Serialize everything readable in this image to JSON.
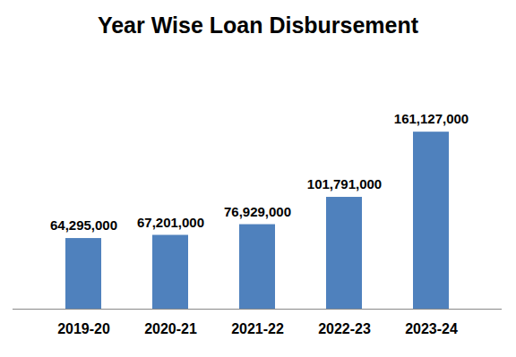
{
  "chart_data": {
    "type": "bar",
    "title": "Year Wise Loan Disbursement",
    "categories": [
      "2019-20",
      "2020-21",
      "2021-22",
      "2022-23",
      "2023-24"
    ],
    "values": [
      64295000,
      67201000,
      76929000,
      101791000,
      161127000
    ],
    "value_labels": [
      "64,295,000",
      "67,201,000",
      "76,929,000",
      "101,791,000",
      "161,127,000"
    ],
    "color": "#4f81bd",
    "ylim": [
      0,
      180000000
    ],
    "data_labels": true,
    "tick_labels": "x"
  }
}
